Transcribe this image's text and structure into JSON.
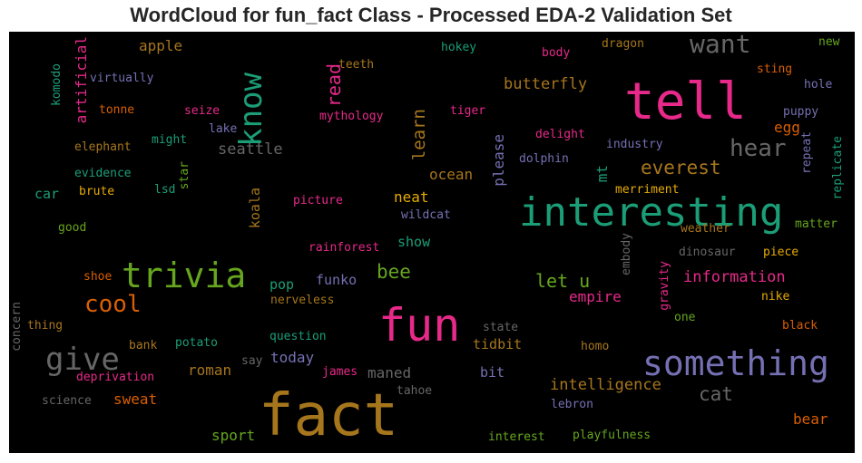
{
  "title": "WordCloud for fun_fact Class - Processed EDA-2 Validation Set",
  "colors": {
    "pink": "#e7298a",
    "teal": "#1b9e77",
    "orange": "#d95f02",
    "purple": "#7570b3",
    "green": "#66a61e",
    "mustard": "#a6761d",
    "yellow": "#e6ab02",
    "gray": "#666666",
    "background": "#000000"
  },
  "words": [
    {
      "text": "fact",
      "color": "mustard"
    },
    {
      "text": "fun",
      "color": "pink"
    },
    {
      "text": "interesting",
      "color": "teal"
    },
    {
      "text": "tell",
      "color": "pink"
    },
    {
      "text": "trivia",
      "color": "green"
    },
    {
      "text": "something",
      "color": "purple"
    },
    {
      "text": "know",
      "color": "teal"
    },
    {
      "text": "give",
      "color": "gray"
    },
    {
      "text": "want",
      "color": "gray"
    },
    {
      "text": "cool",
      "color": "orange"
    },
    {
      "text": "hear",
      "color": "gray"
    },
    {
      "text": "everest",
      "color": "mustard"
    },
    {
      "text": "let u",
      "color": "green"
    },
    {
      "text": "bee",
      "color": "green"
    },
    {
      "text": "read",
      "color": "pink"
    },
    {
      "text": "learn",
      "color": "mustard"
    },
    {
      "text": "cat",
      "color": "gray"
    },
    {
      "text": "butterfly",
      "color": "mustard"
    },
    {
      "text": "information",
      "color": "pink"
    },
    {
      "text": "intelligence",
      "color": "mustard"
    },
    {
      "text": "seattle",
      "color": "gray"
    },
    {
      "text": "artificial",
      "color": "pink"
    },
    {
      "text": "apple",
      "color": "mustard"
    },
    {
      "text": "please",
      "color": "purple"
    },
    {
      "text": "ocean",
      "color": "mustard"
    },
    {
      "text": "mt",
      "color": "teal"
    },
    {
      "text": "egg",
      "color": "orange"
    },
    {
      "text": "empire",
      "color": "pink"
    },
    {
      "text": "neat",
      "color": "yellow"
    },
    {
      "text": "show",
      "color": "teal"
    },
    {
      "text": "funko",
      "color": "purple"
    },
    {
      "text": "pop",
      "color": "teal"
    },
    {
      "text": "koala",
      "color": "mustard"
    },
    {
      "text": "tidbit",
      "color": "mustard"
    },
    {
      "text": "bit",
      "color": "purple"
    },
    {
      "text": "maned",
      "color": "gray"
    },
    {
      "text": "today",
      "color": "purple"
    },
    {
      "text": "roman",
      "color": "mustard"
    },
    {
      "text": "sweat",
      "color": "orange"
    },
    {
      "text": "sport",
      "color": "green"
    },
    {
      "text": "bear",
      "color": "orange"
    },
    {
      "text": "car",
      "color": "teal"
    },
    {
      "text": "virtually",
      "color": "purple"
    },
    {
      "text": "komodo",
      "color": "teal"
    },
    {
      "text": "tonne",
      "color": "orange"
    },
    {
      "text": "seize",
      "color": "pink"
    },
    {
      "text": "lake",
      "color": "purple"
    },
    {
      "text": "might",
      "color": "teal"
    },
    {
      "text": "elephant",
      "color": "mustard"
    },
    {
      "text": "star",
      "color": "green"
    },
    {
      "text": "evidence",
      "color": "teal"
    },
    {
      "text": "brute",
      "color": "yellow"
    },
    {
      "text": "lsd",
      "color": "teal"
    },
    {
      "text": "good",
      "color": "green"
    },
    {
      "text": "shoe",
      "color": "orange"
    },
    {
      "text": "concern",
      "color": "gray"
    },
    {
      "text": "thing",
      "color": "mustard"
    },
    {
      "text": "bank",
      "color": "mustard"
    },
    {
      "text": "potato",
      "color": "teal"
    },
    {
      "text": "deprivation",
      "color": "pink"
    },
    {
      "text": "science",
      "color": "gray"
    },
    {
      "text": "say",
      "color": "gray"
    },
    {
      "text": "james",
      "color": "pink"
    },
    {
      "text": "tahoe",
      "color": "gray"
    },
    {
      "text": "question",
      "color": "teal"
    },
    {
      "text": "nerveless",
      "color": "mustard"
    },
    {
      "text": "rainforest",
      "color": "pink"
    },
    {
      "text": "picture",
      "color": "pink"
    },
    {
      "text": "wildcat",
      "color": "purple"
    },
    {
      "text": "mythology",
      "color": "pink"
    },
    {
      "text": "teeth",
      "color": "mustard"
    },
    {
      "text": "hokey",
      "color": "teal"
    },
    {
      "text": "body",
      "color": "pink"
    },
    {
      "text": "dragon",
      "color": "mustard"
    },
    {
      "text": "tiger",
      "color": "pink"
    },
    {
      "text": "delight",
      "color": "pink"
    },
    {
      "text": "dolphin",
      "color": "purple"
    },
    {
      "text": "industry",
      "color": "purple"
    },
    {
      "text": "merriment",
      "color": "yellow"
    },
    {
      "text": "weather",
      "color": "mustard"
    },
    {
      "text": "dinosaur",
      "color": "gray"
    },
    {
      "text": "embody",
      "color": "gray"
    },
    {
      "text": "gravity",
      "color": "pink"
    },
    {
      "text": "piece",
      "color": "yellow"
    },
    {
      "text": "nike",
      "color": "yellow"
    },
    {
      "text": "one",
      "color": "green"
    },
    {
      "text": "state",
      "color": "gray"
    },
    {
      "text": "homo",
      "color": "mustard"
    },
    {
      "text": "black",
      "color": "orange"
    },
    {
      "text": "lebron",
      "color": "purple"
    },
    {
      "text": "interest",
      "color": "green"
    },
    {
      "text": "playfulness",
      "color": "green"
    },
    {
      "text": "new",
      "color": "green"
    },
    {
      "text": "sting",
      "color": "orange"
    },
    {
      "text": "hole",
      "color": "purple"
    },
    {
      "text": "puppy",
      "color": "purple"
    },
    {
      "text": "repeat",
      "color": "purple"
    },
    {
      "text": "replicate",
      "color": "teal"
    },
    {
      "text": "matter",
      "color": "green"
    }
  ]
}
